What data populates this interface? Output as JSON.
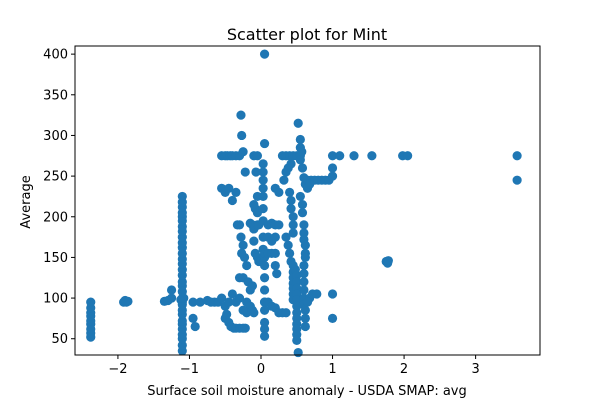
{
  "chart_data": {
    "type": "scatter",
    "title": "Scatter plot for Mint",
    "xlabel": "Surface soil moisture anomaly  - USDA SMAP: avg",
    "ylabel": "Average",
    "xlim": [
      -2.6,
      3.9
    ],
    "ylim": [
      30,
      410
    ],
    "xticks": [
      -2,
      -1,
      0,
      1,
      2,
      3
    ],
    "yticks": [
      50,
      100,
      150,
      200,
      250,
      300,
      350,
      400
    ],
    "grid": false,
    "marker_color": "#1f77b4",
    "points": [
      [
        -2.38,
        52
      ],
      [
        -2.38,
        57
      ],
      [
        -2.38,
        62
      ],
      [
        -2.38,
        68
      ],
      [
        -2.38,
        72
      ],
      [
        -2.38,
        78
      ],
      [
        -2.38,
        82
      ],
      [
        -2.38,
        88
      ],
      [
        -2.38,
        95
      ],
      [
        -1.92,
        95
      ],
      [
        -1.9,
        97
      ],
      [
        -1.88,
        95
      ],
      [
        -1.86,
        96
      ],
      [
        -1.35,
        96
      ],
      [
        -1.3,
        97
      ],
      [
        -1.25,
        100
      ],
      [
        -1.25,
        110
      ],
      [
        -1.12,
        98
      ],
      [
        -1.1,
        95
      ],
      [
        -1.08,
        100
      ],
      [
        -1.1,
        35
      ],
      [
        -1.1,
        42
      ],
      [
        -1.1,
        50
      ],
      [
        -1.1,
        55
      ],
      [
        -1.1,
        62
      ],
      [
        -1.1,
        68
      ],
      [
        -1.1,
        72
      ],
      [
        -1.1,
        80
      ],
      [
        -1.1,
        85
      ],
      [
        -1.1,
        92
      ],
      [
        -1.1,
        100
      ],
      [
        -1.1,
        108
      ],
      [
        -1.1,
        115
      ],
      [
        -1.1,
        120
      ],
      [
        -1.1,
        128
      ],
      [
        -1.1,
        135
      ],
      [
        -1.1,
        142
      ],
      [
        -1.1,
        148
      ],
      [
        -1.1,
        155
      ],
      [
        -1.1,
        162
      ],
      [
        -1.1,
        168
      ],
      [
        -1.1,
        175
      ],
      [
        -1.1,
        182
      ],
      [
        -1.1,
        188
      ],
      [
        -1.1,
        195
      ],
      [
        -1.1,
        200
      ],
      [
        -1.1,
        205
      ],
      [
        -1.1,
        212
      ],
      [
        -1.1,
        218
      ],
      [
        -1.1,
        225
      ],
      [
        -0.95,
        75
      ],
      [
        -0.92,
        65
      ],
      [
        -0.95,
        95
      ],
      [
        -0.85,
        95
      ],
      [
        -0.75,
        97
      ],
      [
        -0.7,
        95
      ],
      [
        -0.65,
        95
      ],
      [
        -0.6,
        95
      ],
      [
        -0.55,
        100
      ],
      [
        -0.5,
        75
      ],
      [
        -0.45,
        70
      ],
      [
        -0.42,
        65
      ],
      [
        -0.38,
        63
      ],
      [
        -0.35,
        63
      ],
      [
        -0.3,
        63
      ],
      [
        -0.25,
        63
      ],
      [
        -0.22,
        63
      ],
      [
        -0.48,
        80
      ],
      [
        -0.5,
        90
      ],
      [
        -0.45,
        95
      ],
      [
        -0.4,
        105
      ],
      [
        -0.35,
        95
      ],
      [
        -0.3,
        100
      ],
      [
        -0.55,
        275
      ],
      [
        -0.5,
        275
      ],
      [
        -0.47,
        275
      ],
      [
        -0.43,
        275
      ],
      [
        -0.4,
        275
      ],
      [
        -0.35,
        275
      ],
      [
        -0.3,
        275
      ],
      [
        -0.55,
        235
      ],
      [
        -0.5,
        230
      ],
      [
        -0.45,
        235
      ],
      [
        -0.4,
        220
      ],
      [
        -0.35,
        230
      ],
      [
        -0.28,
        325
      ],
      [
        -0.27,
        300
      ],
      [
        -0.25,
        280
      ],
      [
        -0.22,
        255
      ],
      [
        -0.33,
        190
      ],
      [
        -0.3,
        190
      ],
      [
        -0.28,
        175
      ],
      [
        -0.25,
        165
      ],
      [
        -0.23,
        150
      ],
      [
        -0.2,
        140
      ],
      [
        -0.27,
        155
      ],
      [
        -0.3,
        125
      ],
      [
        -0.25,
        125
      ],
      [
        -0.18,
        120
      ],
      [
        -0.15,
        110
      ],
      [
        -0.12,
        115
      ],
      [
        -0.2,
        95
      ],
      [
        -0.15,
        90
      ],
      [
        -0.12,
        85
      ],
      [
        -0.2,
        82
      ],
      [
        -0.25,
        85
      ],
      [
        -0.1,
        82
      ],
      [
        -0.15,
        192
      ],
      [
        -0.12,
        190
      ],
      [
        -0.1,
        185
      ],
      [
        -0.08,
        188
      ],
      [
        -0.05,
        190
      ],
      [
        -0.03,
        190
      ],
      [
        -0.1,
        170
      ],
      [
        -0.08,
        155
      ],
      [
        -0.05,
        150
      ],
      [
        -0.03,
        145
      ],
      [
        0.0,
        145
      ],
      [
        -0.05,
        205
      ],
      [
        -0.08,
        210
      ],
      [
        -0.1,
        215
      ],
      [
        -0.05,
        225
      ],
      [
        -0.07,
        255
      ],
      [
        -0.1,
        275
      ],
      [
        -0.05,
        275
      ],
      [
        0.05,
        400
      ],
      [
        0.05,
        290
      ],
      [
        0.03,
        265
      ],
      [
        0.03,
        255
      ],
      [
        0.03,
        245
      ],
      [
        0.03,
        235
      ],
      [
        0.03,
        225
      ],
      [
        0.03,
        210
      ],
      [
        0.03,
        195
      ],
      [
        0.03,
        175
      ],
      [
        0.03,
        160
      ],
      [
        0.05,
        150
      ],
      [
        0.05,
        140
      ],
      [
        0.05,
        125
      ],
      [
        0.05,
        110
      ],
      [
        0.05,
        95
      ],
      [
        0.05,
        85
      ],
      [
        0.05,
        70
      ],
      [
        0.05,
        62
      ],
      [
        0.05,
        53
      ],
      [
        0.1,
        190
      ],
      [
        0.15,
        192
      ],
      [
        0.2,
        190
      ],
      [
        0.25,
        190
      ],
      [
        0.05,
        155
      ],
      [
        0.1,
        155
      ],
      [
        0.15,
        155
      ],
      [
        0.2,
        155
      ],
      [
        0.1,
        175
      ],
      [
        0.15,
        170
      ],
      [
        0.2,
        175
      ],
      [
        0.05,
        95
      ],
      [
        0.1,
        95
      ],
      [
        0.15,
        90
      ],
      [
        0.2,
        88
      ],
      [
        0.25,
        82
      ],
      [
        0.3,
        82
      ],
      [
        0.35,
        82
      ],
      [
        0.2,
        235
      ],
      [
        0.25,
        230
      ],
      [
        0.2,
        140
      ],
      [
        0.22,
        130
      ],
      [
        0.3,
        275
      ],
      [
        0.35,
        275
      ],
      [
        0.4,
        275
      ],
      [
        0.45,
        275
      ],
      [
        0.5,
        275
      ],
      [
        0.55,
        275
      ],
      [
        0.32,
        245
      ],
      [
        0.35,
        255
      ],
      [
        0.38,
        260
      ],
      [
        0.42,
        265
      ],
      [
        0.4,
        230
      ],
      [
        0.42,
        220
      ],
      [
        0.42,
        210
      ],
      [
        0.45,
        200
      ],
      [
        0.45,
        190
      ],
      [
        0.45,
        180
      ],
      [
        0.35,
        175
      ],
      [
        0.38,
        165
      ],
      [
        0.4,
        155
      ],
      [
        0.42,
        145
      ],
      [
        0.45,
        140
      ],
      [
        0.45,
        132
      ],
      [
        0.45,
        125
      ],
      [
        0.45,
        118
      ],
      [
        0.45,
        112
      ],
      [
        0.45,
        105
      ],
      [
        0.45,
        98
      ],
      [
        0.48,
        135
      ],
      [
        0.5,
        128
      ],
      [
        0.5,
        120
      ],
      [
        0.5,
        112
      ],
      [
        0.5,
        105
      ],
      [
        0.5,
        98
      ],
      [
        0.5,
        90
      ],
      [
        0.5,
        82
      ],
      [
        0.5,
        75
      ],
      [
        0.5,
        68
      ],
      [
        0.5,
        62
      ],
      [
        0.5,
        55
      ],
      [
        0.5,
        48
      ],
      [
        0.52,
        33
      ],
      [
        0.52,
        315
      ],
      [
        0.55,
        295
      ],
      [
        0.55,
        285
      ],
      [
        0.57,
        280
      ],
      [
        0.55,
        270
      ],
      [
        0.58,
        260
      ],
      [
        0.6,
        248
      ],
      [
        0.62,
        240
      ],
      [
        0.55,
        225
      ],
      [
        0.58,
        215
      ],
      [
        0.58,
        205
      ],
      [
        0.6,
        190
      ],
      [
        0.6,
        180
      ],
      [
        0.6,
        172
      ],
      [
        0.62,
        165
      ],
      [
        0.62,
        155
      ],
      [
        0.62,
        150
      ],
      [
        0.6,
        140
      ],
      [
        0.6,
        130
      ],
      [
        0.6,
        120
      ],
      [
        0.6,
        110
      ],
      [
        0.6,
        100
      ],
      [
        0.6,
        92
      ],
      [
        0.62,
        85
      ],
      [
        0.62,
        75
      ],
      [
        0.62,
        65
      ],
      [
        0.65,
        245
      ],
      [
        0.7,
        245
      ],
      [
        0.75,
        245
      ],
      [
        0.8,
        245
      ],
      [
        0.85,
        245
      ],
      [
        0.9,
        245
      ],
      [
        0.95,
        245
      ],
      [
        1.0,
        250
      ],
      [
        1.0,
        260
      ],
      [
        0.65,
        235
      ],
      [
        0.68,
        240
      ],
      [
        0.68,
        100
      ],
      [
        0.72,
        105
      ],
      [
        0.78,
        105
      ],
      [
        0.65,
        95
      ],
      [
        1.0,
        275
      ],
      [
        1.1,
        275
      ],
      [
        1.3,
        275
      ],
      [
        1.55,
        275
      ],
      [
        1.98,
        275
      ],
      [
        2.05,
        275
      ],
      [
        1.0,
        105
      ],
      [
        1.0,
        75
      ],
      [
        1.75,
        145
      ],
      [
        1.77,
        143
      ],
      [
        1.78,
        146
      ],
      [
        3.58,
        275
      ],
      [
        3.58,
        245
      ]
    ]
  }
}
